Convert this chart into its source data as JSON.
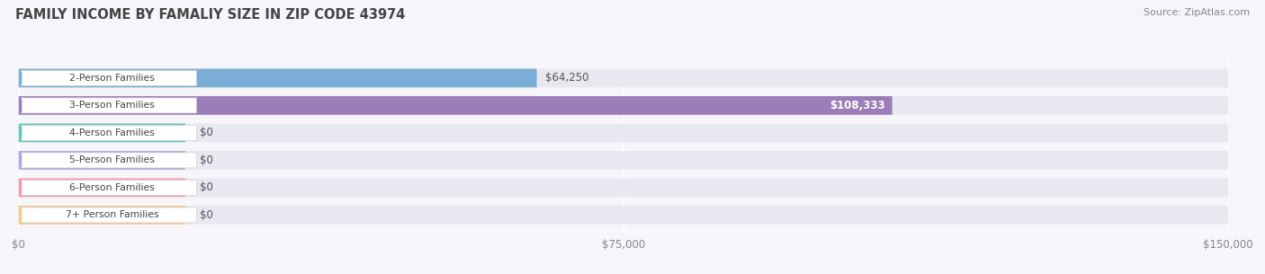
{
  "title": "FAMILY INCOME BY FAMALIY SIZE IN ZIP CODE 43974",
  "source": "Source: ZipAtlas.com",
  "categories": [
    "2-Person Families",
    "3-Person Families",
    "4-Person Families",
    "5-Person Families",
    "6-Person Families",
    "7+ Person Families"
  ],
  "values": [
    64250,
    108333,
    0,
    0,
    0,
    0
  ],
  "bar_colors": [
    "#7aaed6",
    "#9b7eb8",
    "#5ec8b8",
    "#aaaadd",
    "#f59aaa",
    "#f5c98a"
  ],
  "bar_bg_color": "#e8e8f0",
  "xlim_max": 150000,
  "xticks": [
    0,
    75000,
    150000
  ],
  "xtick_labels": [
    "$0",
    "$75,000",
    "$150,000"
  ],
  "title_color": "#444444",
  "source_color": "#888888",
  "background_color": "#ffffff",
  "fig_background_color": "#f5f5fa",
  "row_sep_color": "#e0e0ea"
}
